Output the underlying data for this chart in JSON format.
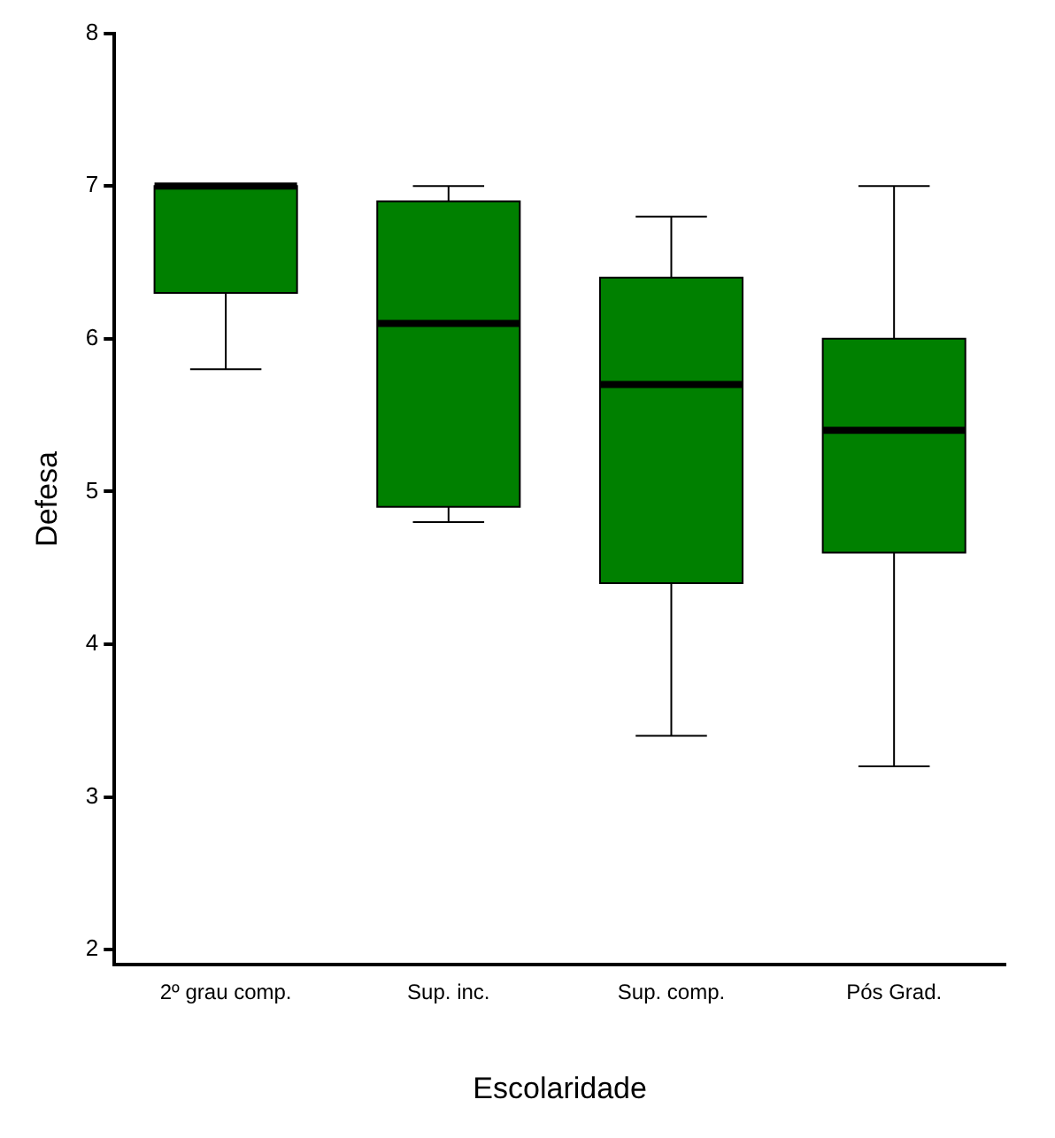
{
  "chart_data": {
    "type": "box",
    "xlabel": "Escolaridade",
    "ylabel": "Defesa",
    "categories": [
      "2º grau comp.",
      "Sup. inc.",
      "Sup. comp.",
      "Pós Grad."
    ],
    "color": "#008000",
    "boxes": [
      {
        "low": 5.8,
        "q1": 6.3,
        "median": 7.0,
        "q3": 7.0,
        "high": 7.0
      },
      {
        "low": 4.8,
        "q1": 4.9,
        "median": 6.1,
        "q3": 6.9,
        "high": 7.0
      },
      {
        "low": 3.4,
        "q1": 4.4,
        "median": 5.7,
        "q3": 6.4,
        "high": 6.8
      },
      {
        "low": 3.2,
        "q1": 4.6,
        "median": 5.4,
        "q3": 6.0,
        "high": 7.0
      }
    ],
    "ylim": [
      1.9,
      8
    ],
    "yticks": [
      2,
      3,
      4,
      5,
      6,
      7,
      8
    ],
    "grid": false,
    "legend": false
  }
}
